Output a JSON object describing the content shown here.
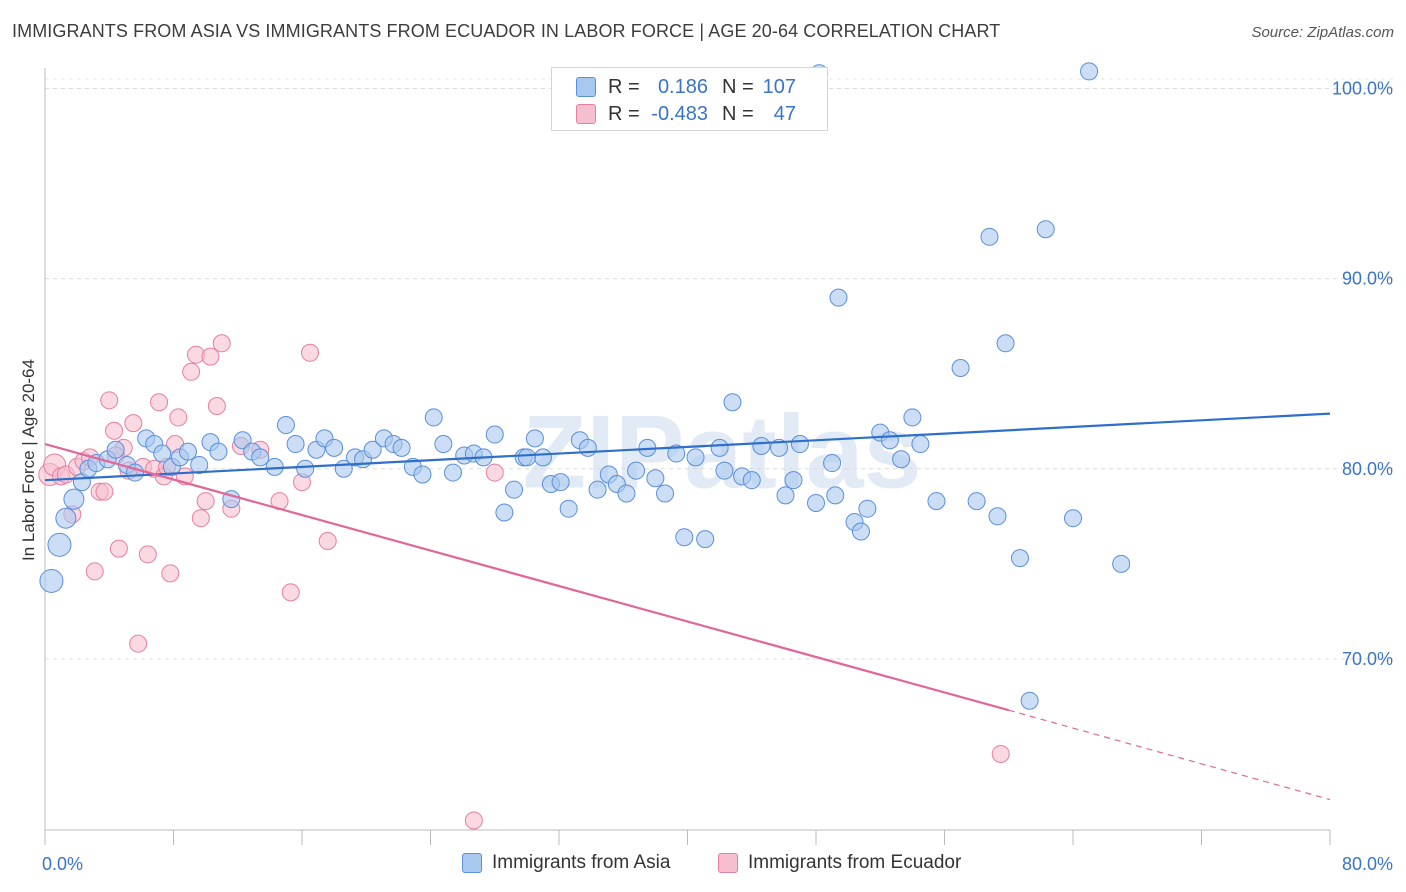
{
  "header": {
    "title": "IMMIGRANTS FROM ASIA VS IMMIGRANTS FROM ECUADOR IN LABOR FORCE | AGE 20-64 CORRELATION CHART",
    "source": "Source: ZipAtlas.com"
  },
  "legend": {
    "rows": [
      {
        "r_label": "R =",
        "r_value": "0.186",
        "n_label": "N =",
        "n_value": "107"
      },
      {
        "r_label": "R =",
        "r_value": "-0.483",
        "n_label": "N =",
        "n_value": "47"
      }
    ]
  },
  "chart_data": {
    "type": "scatter",
    "watermark": "ZIPatlas",
    "xlabel": "",
    "ylabel": "In Labor Force | Age 20-64",
    "xlim": [
      0,
      80
    ],
    "ylim": [
      61,
      101.5
    ],
    "x_tick_labels": [
      {
        "value": 0,
        "label": "0.0%"
      },
      {
        "value": 80,
        "label": "80.0%"
      }
    ],
    "y_tick_labels": [
      {
        "value": 70,
        "label": "70.0%"
      },
      {
        "value": 80,
        "label": "80.0%"
      },
      {
        "value": 90,
        "label": "90.0%"
      },
      {
        "value": 100,
        "label": "100.0%"
      }
    ],
    "grid": {
      "horizontal": true,
      "style": "dashed",
      "values": [
        70,
        80,
        90,
        100
      ]
    },
    "legend_position": "top-center",
    "colors": {
      "asia_fill": "#a9c8f0",
      "asia_stroke": "#5b8fd8",
      "asia_line": "#2f6fc9",
      "ecuador_fill": "#f6bfd0",
      "ecuador_stroke": "#e57fa0",
      "ecuador_line": "#e0679a",
      "tick_label": "#3a74c8"
    },
    "series": [
      {
        "name": "Immigrants from Asia",
        "r": 0.186,
        "n": 107,
        "trend": {
          "x0": 0,
          "y0": 79.4,
          "x1": 80,
          "y1": 82.9
        },
        "points": [
          [
            0.4,
            74.1
          ],
          [
            0.9,
            76.0
          ],
          [
            1.3,
            77.4
          ],
          [
            1.8,
            78.4
          ],
          [
            2.3,
            79.3
          ],
          [
            2.7,
            80.0
          ],
          [
            3.2,
            80.3
          ],
          [
            3.9,
            80.5
          ],
          [
            4.4,
            81.0
          ],
          [
            5.1,
            80.2
          ],
          [
            5.6,
            79.8
          ],
          [
            6.3,
            81.6
          ],
          [
            6.8,
            81.3
          ],
          [
            7.3,
            80.8
          ],
          [
            7.9,
            80.1
          ],
          [
            8.4,
            80.6
          ],
          [
            8.9,
            80.9
          ],
          [
            9.6,
            80.2
          ],
          [
            10.3,
            81.4
          ],
          [
            10.8,
            80.9
          ],
          [
            11.6,
            78.4
          ],
          [
            12.3,
            81.5
          ],
          [
            12.9,
            80.9
          ],
          [
            13.4,
            80.6
          ],
          [
            14.3,
            80.1
          ],
          [
            15.0,
            82.3
          ],
          [
            15.6,
            81.3
          ],
          [
            16.2,
            80.0
          ],
          [
            16.9,
            81.0
          ],
          [
            17.4,
            81.6
          ],
          [
            18.0,
            81.1
          ],
          [
            18.6,
            80.0
          ],
          [
            19.3,
            80.6
          ],
          [
            19.8,
            80.5
          ],
          [
            20.4,
            81.0
          ],
          [
            21.1,
            81.6
          ],
          [
            21.7,
            81.3
          ],
          [
            22.2,
            81.1
          ],
          [
            22.9,
            80.1
          ],
          [
            23.5,
            79.7
          ],
          [
            24.2,
            82.7
          ],
          [
            24.8,
            81.3
          ],
          [
            25.4,
            79.8
          ],
          [
            26.1,
            80.7
          ],
          [
            26.7,
            80.8
          ],
          [
            27.3,
            80.6
          ],
          [
            28.0,
            81.8
          ],
          [
            28.6,
            77.7
          ],
          [
            29.2,
            78.9
          ],
          [
            29.8,
            80.6
          ],
          [
            30.5,
            81.6
          ],
          [
            31.0,
            80.6
          ],
          [
            31.5,
            79.2
          ],
          [
            32.1,
            79.3
          ],
          [
            32.6,
            77.9
          ],
          [
            33.3,
            81.5
          ],
          [
            33.8,
            81.1
          ],
          [
            34.4,
            78.9
          ],
          [
            35.1,
            79.7
          ],
          [
            35.6,
            79.2
          ],
          [
            36.2,
            78.7
          ],
          [
            36.8,
            79.9
          ],
          [
            37.5,
            81.1
          ],
          [
            38.0,
            79.5
          ],
          [
            38.6,
            78.7
          ],
          [
            39.3,
            80.8
          ],
          [
            39.8,
            76.4
          ],
          [
            40.5,
            80.6
          ],
          [
            41.1,
            76.3
          ],
          [
            42.0,
            81.1
          ],
          [
            42.3,
            79.9
          ],
          [
            42.8,
            83.5
          ],
          [
            43.4,
            79.6
          ],
          [
            44.0,
            79.4
          ],
          [
            44.6,
            81.2
          ],
          [
            45.7,
            81.1
          ],
          [
            46.1,
            78.6
          ],
          [
            46.6,
            79.4
          ],
          [
            47.0,
            81.3
          ],
          [
            48.0,
            78.2
          ],
          [
            49.0,
            80.3
          ],
          [
            49.2,
            78.6
          ],
          [
            49.4,
            89.0
          ],
          [
            50.4,
            77.2
          ],
          [
            50.8,
            76.7
          ],
          [
            51.2,
            77.9
          ],
          [
            52.0,
            81.9
          ],
          [
            52.6,
            81.5
          ],
          [
            53.3,
            80.5
          ],
          [
            54.0,
            82.7
          ],
          [
            54.5,
            81.3
          ],
          [
            55.5,
            78.3
          ],
          [
            48.2,
            100.8
          ],
          [
            57.0,
            85.3
          ],
          [
            58.0,
            78.3
          ],
          [
            58.8,
            92.2
          ],
          [
            59.3,
            77.5
          ],
          [
            59.8,
            86.6
          ],
          [
            60.7,
            75.3
          ],
          [
            61.3,
            67.8
          ],
          [
            62.3,
            92.6
          ],
          [
            64.0,
            77.4
          ],
          [
            65.0,
            100.9
          ],
          [
            67.0,
            75.0
          ],
          [
            30.0,
            80.6
          ]
        ]
      },
      {
        "name": "Immigrants from Ecuador",
        "r": -0.483,
        "n": 47,
        "trend": {
          "x0": 0,
          "y0": 81.3,
          "x1": 60,
          "y1": 67.3,
          "dash_x1": 80,
          "dash_y1": 62.6
        },
        "points": [
          [
            0.3,
            79.7
          ],
          [
            0.6,
            80.2
          ],
          [
            1.0,
            79.6
          ],
          [
            1.3,
            79.7
          ],
          [
            1.7,
            77.6
          ],
          [
            2.0,
            80.1
          ],
          [
            2.4,
            80.4
          ],
          [
            2.8,
            80.6
          ],
          [
            3.1,
            74.6
          ],
          [
            3.4,
            78.8
          ],
          [
            3.7,
            78.8
          ],
          [
            4.0,
            83.6
          ],
          [
            4.3,
            82.0
          ],
          [
            4.6,
            75.8
          ],
          [
            4.9,
            81.1
          ],
          [
            5.2,
            79.9
          ],
          [
            5.5,
            82.4
          ],
          [
            5.8,
            70.8
          ],
          [
            6.1,
            80.1
          ],
          [
            6.4,
            75.5
          ],
          [
            6.8,
            80.0
          ],
          [
            7.1,
            83.5
          ],
          [
            7.4,
            79.6
          ],
          [
            7.8,
            74.5
          ],
          [
            8.1,
            81.3
          ],
          [
            8.3,
            82.7
          ],
          [
            8.7,
            79.6
          ],
          [
            9.1,
            85.1
          ],
          [
            9.4,
            86.0
          ],
          [
            9.7,
            77.4
          ],
          [
            10.0,
            78.3
          ],
          [
            10.3,
            85.9
          ],
          [
            10.7,
            83.3
          ],
          [
            11.0,
            86.6
          ],
          [
            11.6,
            77.9
          ],
          [
            12.2,
            81.2
          ],
          [
            13.4,
            81.0
          ],
          [
            14.6,
            78.3
          ],
          [
            15.3,
            73.5
          ],
          [
            16.0,
            79.3
          ],
          [
            16.5,
            86.1
          ],
          [
            17.6,
            76.2
          ],
          [
            26.7,
            61.5
          ],
          [
            28.0,
            79.8
          ],
          [
            59.5,
            65.0
          ],
          [
            4.4,
            80.7
          ],
          [
            7.6,
            80.1
          ]
        ]
      }
    ]
  },
  "bottom_legend": {
    "items": [
      "Immigrants from Asia",
      "Immigrants from Ecuador"
    ]
  }
}
